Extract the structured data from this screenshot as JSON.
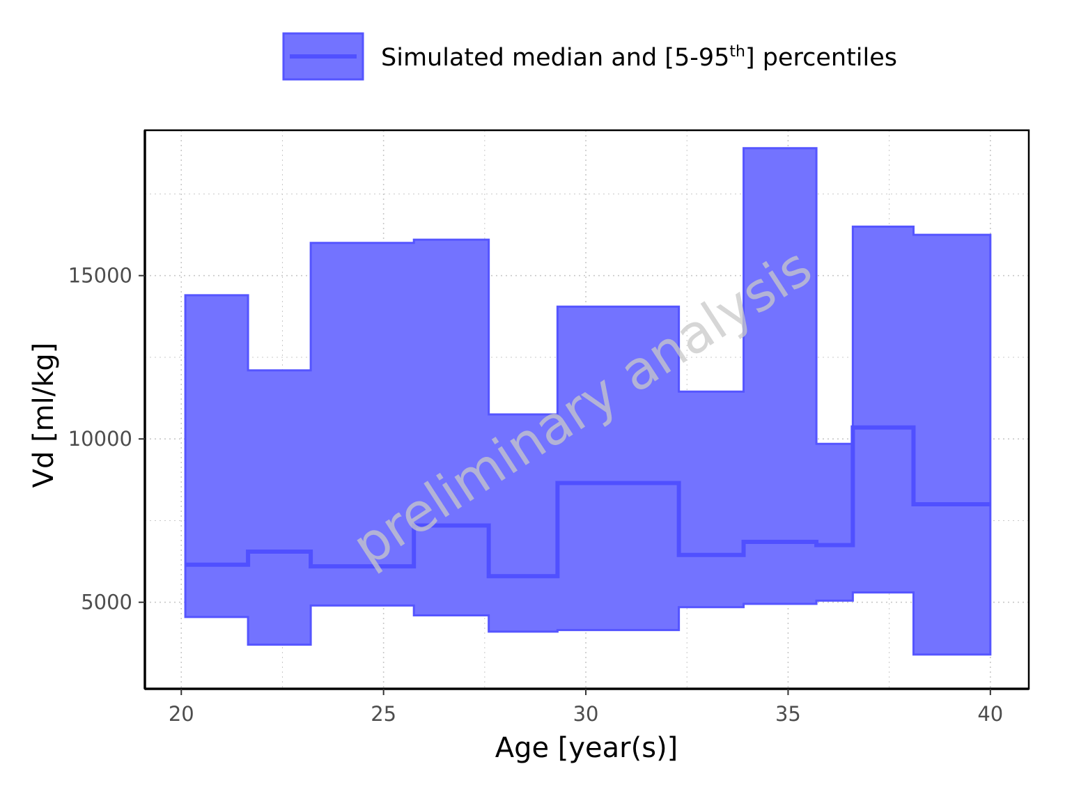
{
  "chart_data": {
    "type": "area",
    "xlabel": "Age [year(s)]",
    "ylabel": "Vd [ml/kg]",
    "xlim": [
      19.1,
      40.95
    ],
    "ylim": [
      2350,
      19450
    ],
    "x_ticks": [
      20,
      25,
      30,
      35,
      40
    ],
    "x_tick_labels": [
      "20",
      "25",
      "30",
      "35",
      "40"
    ],
    "y_ticks": [
      5000,
      10000,
      15000
    ],
    "y_tick_labels": [
      "5000",
      "10000",
      "15000"
    ],
    "y_minor_ticks": [
      7500,
      12500,
      17500
    ],
    "x_minor_ticks": [
      22.5,
      27.5,
      32.5,
      37.5
    ],
    "grid": true,
    "legend": {
      "position": "top",
      "label_before": "Simulated median and [5-95",
      "label_sup": "th",
      "label_after": "] percentiles"
    },
    "watermark": "preliminary analysis",
    "colors": {
      "ribbon_fill": "#7373ff",
      "ribbon_stroke": "#5555ff",
      "median": "#5050ff",
      "grid": "#c8c8c8",
      "axis": "#000000"
    },
    "series": [
      {
        "name": "Simulated median and [5-95th] percentiles",
        "bins": [
          {
            "x0": 20.1,
            "x1": 21.65,
            "median": 6150,
            "p5": 4550,
            "p95": 14400
          },
          {
            "x0": 21.65,
            "x1": 23.2,
            "median": 6550,
            "p5": 3700,
            "p95": 12100
          },
          {
            "x0": 23.2,
            "x1": 25.75,
            "median": 6100,
            "p5": 4900,
            "p95": 16000
          },
          {
            "x0": 25.75,
            "x1": 27.6,
            "median": 7350,
            "p5": 4600,
            "p95": 16100
          },
          {
            "x0": 27.6,
            "x1": 29.3,
            "median": 5800,
            "p5": 4100,
            "p95": 10750
          },
          {
            "x0": 29.3,
            "x1": 32.3,
            "median": 8650,
            "p5": 4150,
            "p95": 14050
          },
          {
            "x0": 32.3,
            "x1": 33.9,
            "median": 6450,
            "p5": 4850,
            "p95": 11450
          },
          {
            "x0": 33.9,
            "x1": 35.7,
            "median": 6850,
            "p5": 4950,
            "p95": 18900
          },
          {
            "x0": 35.7,
            "x1": 36.6,
            "median": 6750,
            "p5": 5050,
            "p95": 9850
          },
          {
            "x0": 36.6,
            "x1": 38.1,
            "median": 10350,
            "p5": 5300,
            "p95": 16500
          },
          {
            "x0": 38.1,
            "x1": 40.0,
            "median": 8000,
            "p5": 3400,
            "p95": 16250
          }
        ]
      }
    ]
  }
}
